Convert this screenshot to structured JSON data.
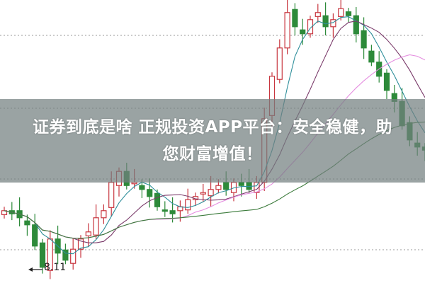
{
  "banner": {
    "line1": "证券到底是啥 正规投资APP平台：安全稳健，助",
    "line2": "您财富增值！"
  },
  "chart_data": {
    "type": "candlestick",
    "title": "",
    "ylim": [
      8.0,
      11.6
    ],
    "grid": true,
    "low_marker": "8.11",
    "colors": {
      "up": "#c8363f",
      "down": "#2d8a3a",
      "ma_lines": [
        "#2f8f9b",
        "#7a3a6a",
        "#e58ee0",
        "#3a7a3a"
      ]
    },
    "moving_averages": [
      5,
      10,
      20,
      40
    ],
    "close": [
      8.92,
      8.88,
      8.83,
      8.74,
      8.47,
      8.2,
      8.56,
      8.38,
      8.29,
      8.43,
      8.56,
      8.65,
      8.83,
      8.92,
      9.28,
      9.42,
      9.24,
      9.28,
      9.19,
      9.1,
      8.97,
      8.92,
      8.88,
      8.97,
      9.06,
      9.1,
      9.15,
      9.19,
      9.24,
      9.19,
      9.28,
      9.24,
      9.19,
      9.28,
      10.09,
      10.63,
      10.99,
      11.44,
      11.26,
      11.17,
      11.35,
      11.44,
      11.26,
      11.35,
      11.49,
      11.4,
      11.17,
      10.99,
      10.81,
      10.63,
      10.45,
      10.31,
      10.0,
      9.82,
      9.73,
      9.69
    ]
  }
}
